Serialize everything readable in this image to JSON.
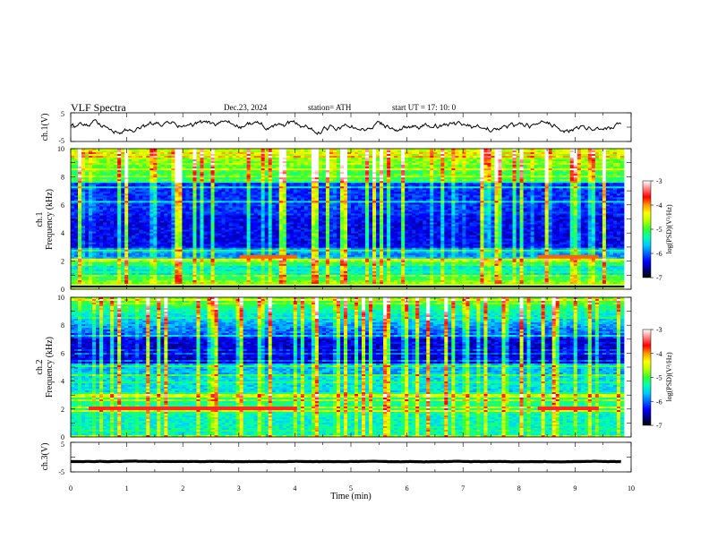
{
  "header": {
    "title": "VLF  Spectra",
    "date": "Dec.23, 2024",
    "station": "station= ATH",
    "start_ut": "start  UT  =    17: 10: 0"
  },
  "colors": {
    "spectrogram_scale": [
      "#000000",
      "#00007f",
      "#0000ff",
      "#0066ff",
      "#00c8ff",
      "#00ffb4",
      "#33ff33",
      "#b4ff00",
      "#ffff00",
      "#ff9900",
      "#ff0000",
      "#ff8080",
      "#ffffff"
    ]
  },
  "chart_data": [
    {
      "type": "line",
      "ylabel": "ch.1(V)",
      "ylim": [
        -5,
        5
      ],
      "yticks": [
        "5",
        "-5"
      ],
      "xlim": [
        0,
        10
      ],
      "level": 0
    },
    {
      "type": "heatmap",
      "ylabel": "ch.1 Frequency (kHz)",
      "ylabel_parts": [
        "ch.1",
        "Frequency (kHz)"
      ],
      "ylim": [
        0,
        10
      ],
      "yticks": [
        "0",
        "2",
        "4",
        "6",
        "8",
        "10"
      ],
      "xlim": [
        0,
        10
      ],
      "colorbar": {
        "label": "log(PSD)(V²/Hz)",
        "range": [
          -7,
          -3
        ],
        "ticks": [
          "-3",
          "-4",
          "-5",
          "-6",
          "-7"
        ]
      }
    },
    {
      "type": "heatmap",
      "ylabel": "ch.2 Frequency (kHz)",
      "ylabel_parts": [
        "ch.2",
        "Frequency (kHz)"
      ],
      "ylim": [
        0,
        10
      ],
      "yticks": [
        "0",
        "2",
        "4",
        "6",
        "8",
        "10"
      ],
      "xlim": [
        0,
        10
      ],
      "colorbar": {
        "label": "log(PSD)(V²/Hz)",
        "range": [
          -7,
          -3
        ],
        "ticks": [
          "-3",
          "-4",
          "-5",
          "-6",
          "-7"
        ]
      }
    },
    {
      "type": "line",
      "ylabel": "ch.3(V)",
      "ylim": [
        -5,
        5
      ],
      "yticks": [
        "5",
        "-5"
      ],
      "xlim": [
        0,
        10
      ],
      "level": -1.5,
      "xlabel": "Time  (min)",
      "xticks": [
        "0",
        "1",
        "2",
        "3",
        "4",
        "5",
        "6",
        "7",
        "8",
        "9",
        "10"
      ]
    }
  ]
}
